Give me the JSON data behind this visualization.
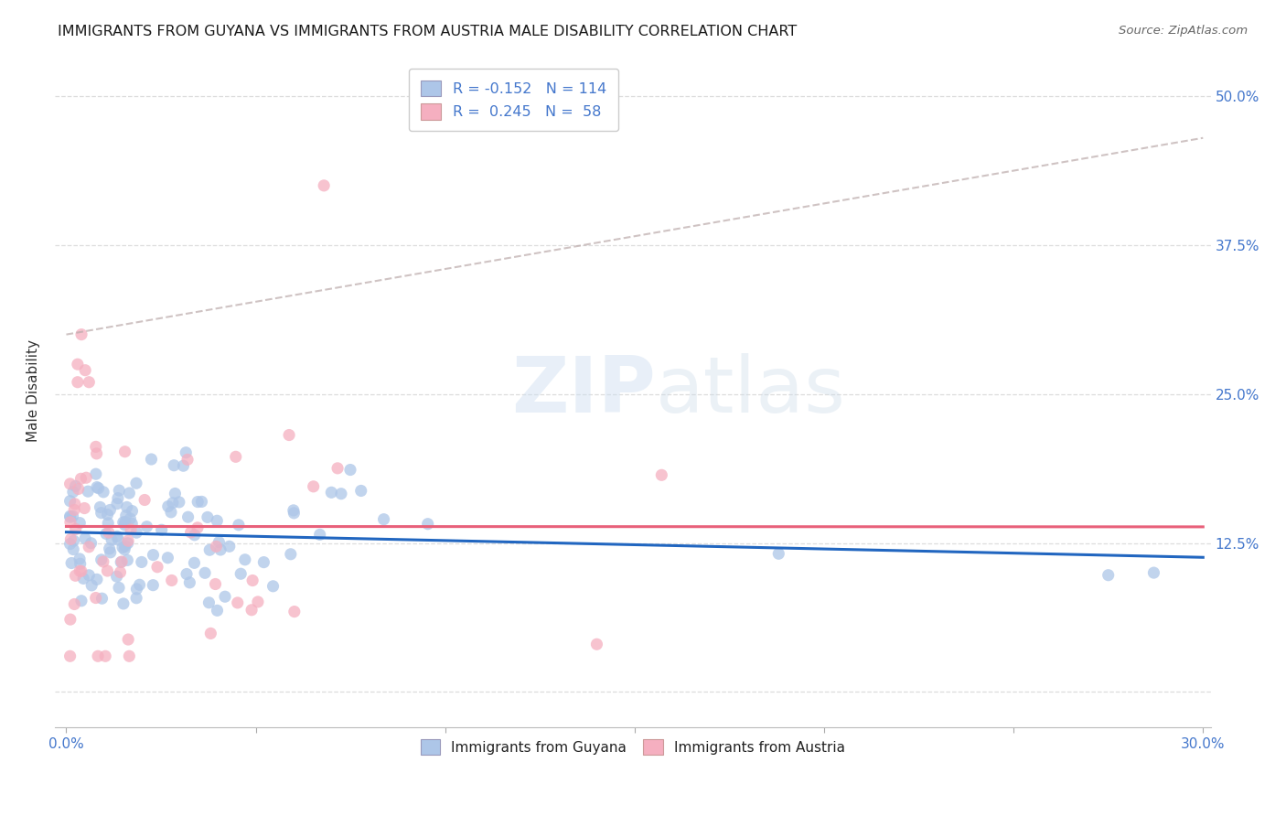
{
  "title": "IMMIGRANTS FROM GUYANA VS IMMIGRANTS FROM AUSTRIA MALE DISABILITY CORRELATION CHART",
  "source": "Source: ZipAtlas.com",
  "xlim": [
    0.0,
    0.3
  ],
  "ylim": [
    -0.03,
    0.53
  ],
  "ylabel": "Male Disability",
  "guyana_color": "#adc6e8",
  "austria_color": "#f5afc0",
  "guyana_line_color": "#2166c0",
  "austria_line_color": "#e8607a",
  "dashed_line_color": "#ccbbbb",
  "R_guyana": -0.152,
  "N_guyana": 114,
  "R_austria": 0.245,
  "N_austria": 58,
  "watermark_color": "#d0dff0",
  "background_color": "#ffffff",
  "grid_color": "#dddddd",
  "tick_color": "#4477cc",
  "label_color": "#333333"
}
